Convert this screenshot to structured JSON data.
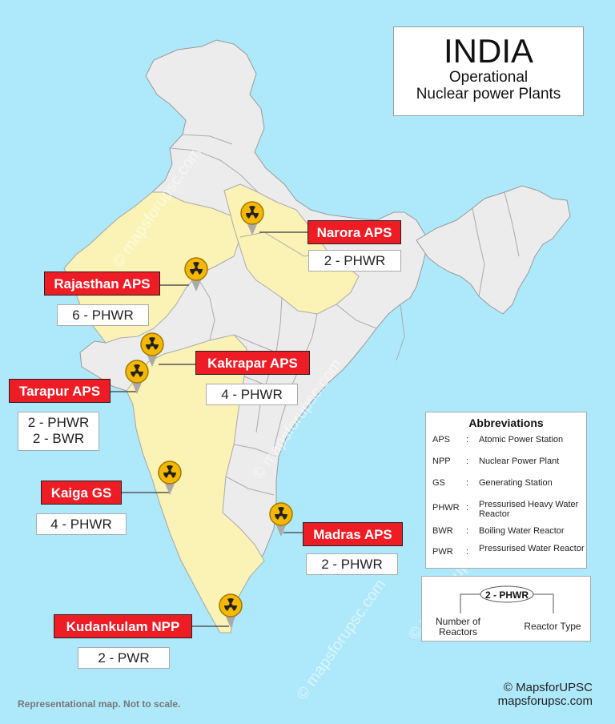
{
  "title": {
    "main": "INDIA",
    "line1": "Operational",
    "line2": "Nuclear power Plants"
  },
  "plants": [
    {
      "name": "Narora APS",
      "reactors": [
        "2 - PHWR"
      ]
    },
    {
      "name": "Rajasthan APS",
      "reactors": [
        "6 - PHWR"
      ]
    },
    {
      "name": "Kakrapar APS",
      "reactors": [
        "4 - PHWR"
      ]
    },
    {
      "name": "Tarapur APS",
      "reactors": [
        "2 - PHWR",
        "2 - BWR"
      ]
    },
    {
      "name": "Kaiga GS",
      "reactors": [
        "4 - PHWR"
      ]
    },
    {
      "name": "Madras APS",
      "reactors": [
        "2 - PHWR"
      ]
    },
    {
      "name": "Kudankulam NPP",
      "reactors": [
        "2 - PWR"
      ]
    }
  ],
  "abbreviations": {
    "title": "Abbreviations",
    "items": [
      {
        "abbr": "APS",
        "meaning": "Atomic Power Station"
      },
      {
        "abbr": "NPP",
        "meaning": "Nuclear Power Plant"
      },
      {
        "abbr": "GS",
        "meaning": "Generating Station"
      },
      {
        "abbr": "PHWR",
        "meaning": "Pressurised Heavy Water Reactor"
      },
      {
        "abbr": "BWR",
        "meaning": "Boiling Water Reactor"
      },
      {
        "abbr": "PWR",
        "meaning": "Pressurised Water Reactor"
      }
    ]
  },
  "key": {
    "sample": "2 - PHWR",
    "left_label": "Number of Reactors",
    "right_label": "Reactor Type"
  },
  "footer": {
    "note": "Representational map. Not to scale.",
    "copyright": "© MapsforUPSC",
    "site": "mapsforupsc.com"
  },
  "watermark": "© mapsforupsc.com",
  "colors": {
    "sea": "#aee9fb",
    "land": "#ececec",
    "highlight_states": "#fbf3b5",
    "label_red": "#ee1c25",
    "marker_gold": "#f5b800"
  },
  "icons": {
    "marker": "radiation-marker-icon"
  }
}
